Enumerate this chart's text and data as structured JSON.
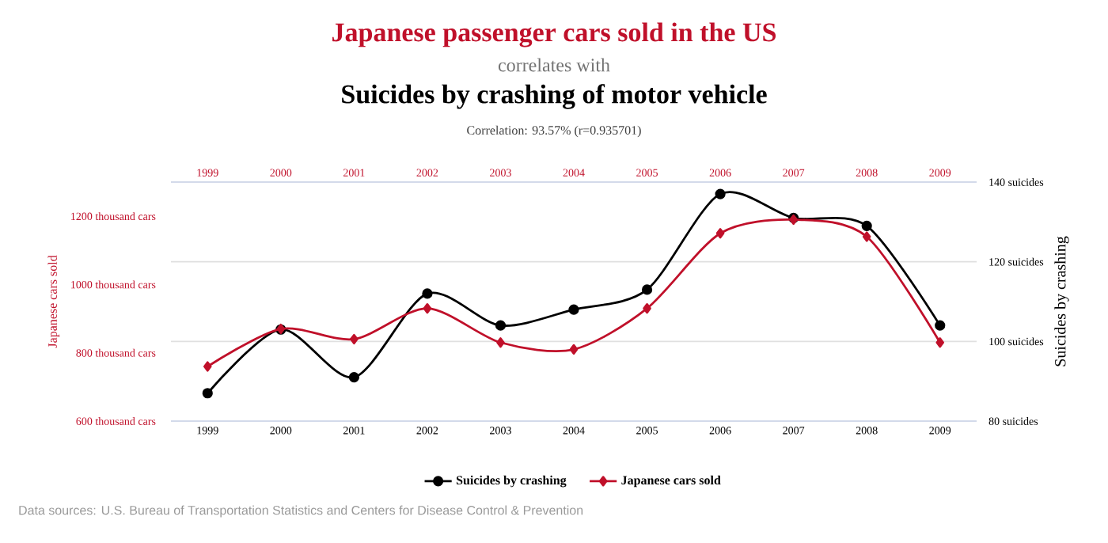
{
  "chart_data": {
    "type": "line",
    "title": "Japanese passenger cars sold in the US",
    "subtitle": "correlates with",
    "annotations": [
      "Suicides by crashing of motor vehicle",
      "Correlation: 93.57% (r=0.935701)",
      "Data sources: U.S. Bureau of Transportation Statistics and Centers for Disease Control & Prevention"
    ],
    "ylabel": "Japanese cars sold",
    "y2label": "Suicides by crashing",
    "x": [
      1999,
      2000,
      2001,
      2002,
      2003,
      2004,
      2005,
      2006,
      2007,
      2008,
      2009
    ],
    "xlim": [
      1998.5,
      2009.5
    ],
    "xticks": [
      1999,
      2000,
      2001,
      2002,
      2003,
      2004,
      2005,
      2006,
      2007,
      2008,
      2009
    ],
    "x2lim": [
      1998.5,
      2009.5
    ],
    "x2ticks": [
      1999,
      2000,
      2001,
      2002,
      2003,
      2004,
      2005,
      2006,
      2007,
      2008,
      2009
    ],
    "ylim": [
      600,
      1300
    ],
    "yticks": [
      {
        "value": 600,
        "label": "600 thousand cars"
      },
      {
        "value": 800,
        "label": "800 thousand cars"
      },
      {
        "value": 1000,
        "label": "1000 thousand cars"
      },
      {
        "value": 1200,
        "label": "1200 thousand cars"
      }
    ],
    "y2lim": [
      80,
      140
    ],
    "y2ticks": [
      {
        "value": 80,
        "label": "80 suicides"
      },
      {
        "value": 100,
        "label": "100 suicides"
      },
      {
        "value": 120,
        "label": "120 suicides"
      },
      {
        "value": 140,
        "label": "140 suicides"
      }
    ],
    "grid": "y",
    "legend": "bottom",
    "series": [
      {
        "name": "Suicides by crashing",
        "color": "#000000",
        "axis": "y2",
        "marker": "circle",
        "values": [
          87,
          103,
          91,
          112,
          104,
          108,
          113,
          137,
          131,
          129,
          104
        ]
      },
      {
        "name": "Japanese cars sold",
        "color": "#c0102a",
        "axis": "y",
        "marker": "diamond",
        "values": [
          760,
          870,
          840,
          930,
          830,
          810,
          930,
          1150,
          1190,
          1140,
          830
        ]
      }
    ]
  }
}
